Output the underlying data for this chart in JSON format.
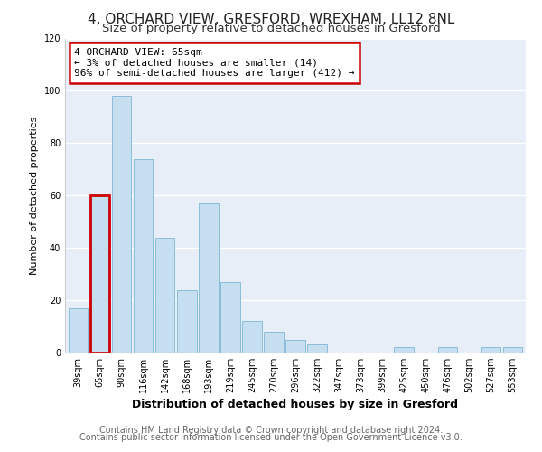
{
  "title": "4, ORCHARD VIEW, GRESFORD, WREXHAM, LL12 8NL",
  "subtitle": "Size of property relative to detached houses in Gresford",
  "xlabel": "Distribution of detached houses by size in Gresford",
  "ylabel": "Number of detached properties",
  "bar_labels": [
    "39sqm",
    "65sqm",
    "90sqm",
    "116sqm",
    "142sqm",
    "168sqm",
    "193sqm",
    "219sqm",
    "245sqm",
    "270sqm",
    "296sqm",
    "322sqm",
    "347sqm",
    "373sqm",
    "399sqm",
    "425sqm",
    "450sqm",
    "476sqm",
    "502sqm",
    "527sqm",
    "553sqm"
  ],
  "bar_values": [
    17,
    60,
    98,
    74,
    44,
    24,
    57,
    27,
    12,
    8,
    5,
    3,
    0,
    0,
    0,
    2,
    0,
    2,
    0,
    2,
    2
  ],
  "bar_color": "#c5dff0",
  "highlight_bar_index": 1,
  "highlight_edge_color": "#cc0000",
  "normal_edge_color": "#8bbdd9",
  "annotation_title": "4 ORCHARD VIEW: 65sqm",
  "annotation_line1": "← 3% of detached houses are smaller (14)",
  "annotation_line2": "96% of semi-detached houses are larger (412) →",
  "annotation_box_color": "#ffffff",
  "annotation_box_edge": "#cc0000",
  "ylim": [
    0,
    120
  ],
  "yticks": [
    0,
    20,
    40,
    60,
    80,
    100,
    120
  ],
  "footer_line1": "Contains HM Land Registry data © Crown copyright and database right 2024.",
  "footer_line2": "Contains public sector information licensed under the Open Government Licence v3.0.",
  "fig_background": "#ffffff",
  "axes_background": "#e8eef8",
  "title_fontsize": 11,
  "subtitle_fontsize": 9.5,
  "xlabel_fontsize": 9,
  "ylabel_fontsize": 8,
  "tick_fontsize": 7,
  "footer_fontsize": 7,
  "annotation_fontsize": 8
}
